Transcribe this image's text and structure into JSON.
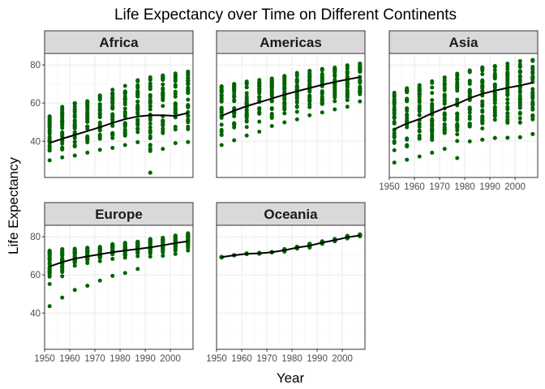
{
  "chart_data": {
    "type": "scatter",
    "title": "Life Expectancy over Time on Different Continents",
    "xlabel": "Year",
    "ylabel": "Life Expectancy",
    "xlim": [
      1950,
      2009
    ],
    "ylim": [
      21,
      86
    ],
    "x_ticks": [
      1950,
      1960,
      1970,
      1980,
      1990,
      2000
    ],
    "y_ticks": [
      40,
      60,
      80
    ],
    "grid": true,
    "point_color": "#006400",
    "trend_color": "#000000",
    "strip_color": "#d9d9d9",
    "years": [
      1952,
      1957,
      1962,
      1967,
      1972,
      1977,
      1982,
      1987,
      1992,
      1997,
      2002,
      2007
    ],
    "panels": [
      {
        "strip": "Africa",
        "points": [
          {
            "year": 1952,
            "min": 30,
            "max": 53
          },
          {
            "year": 1957,
            "min": 31.5,
            "max": 58
          },
          {
            "year": 1962,
            "min": 32.5,
            "max": 60
          },
          {
            "year": 1967,
            "min": 34,
            "max": 61
          },
          {
            "year": 1972,
            "min": 35.5,
            "max": 64
          },
          {
            "year": 1977,
            "min": 36.5,
            "max": 67
          },
          {
            "year": 1982,
            "min": 38,
            "max": 69
          },
          {
            "year": 1987,
            "min": 39.5,
            "max": 72
          },
          {
            "year": 1992,
            "min": 23.5,
            "max": 73.5
          },
          {
            "year": 1997,
            "min": 36,
            "max": 74.5
          },
          {
            "year": 2002,
            "min": 39,
            "max": 75.5
          },
          {
            "year": 2007,
            "min": 39.6,
            "max": 76.5
          }
        ],
        "outliers": [
          {
            "year": 1992,
            "value": 23.5
          }
        ],
        "trend": [
          39.1,
          41.3,
          43.3,
          45.3,
          47.4,
          49.6,
          51.6,
          53.0,
          53.6,
          53.6,
          53.3,
          54.8
        ]
      },
      {
        "strip": "Americas",
        "points": [
          {
            "year": 1952,
            "min": 38,
            "max": 68.8
          },
          {
            "year": 1957,
            "min": 40.5,
            "max": 70
          },
          {
            "year": 1962,
            "min": 43,
            "max": 71.3
          },
          {
            "year": 1967,
            "min": 45,
            "max": 72.1
          },
          {
            "year": 1972,
            "min": 48,
            "max": 72.9
          },
          {
            "year": 1977,
            "min": 49.9,
            "max": 74.2
          },
          {
            "year": 1982,
            "min": 51.5,
            "max": 75.8
          },
          {
            "year": 1987,
            "min": 53.6,
            "max": 76.9
          },
          {
            "year": 1992,
            "min": 55.1,
            "max": 77.9
          },
          {
            "year": 1997,
            "min": 56.7,
            "max": 78.6
          },
          {
            "year": 2002,
            "min": 58.1,
            "max": 79.8
          },
          {
            "year": 2007,
            "min": 60.9,
            "max": 80.7
          }
        ],
        "outliers": [],
        "trend": [
          53.3,
          56.0,
          58.4,
          60.4,
          62.4,
          64.4,
          66.2,
          67.9,
          69.6,
          71.1,
          72.4,
          73.6
        ]
      },
      {
        "strip": "Asia",
        "points": [
          {
            "year": 1952,
            "min": 28.8,
            "max": 65.4
          },
          {
            "year": 1957,
            "min": 30.3,
            "max": 67.8
          },
          {
            "year": 1962,
            "min": 32,
            "max": 69.4
          },
          {
            "year": 1967,
            "min": 34,
            "max": 71.4
          },
          {
            "year": 1972,
            "min": 36,
            "max": 73.4
          },
          {
            "year": 1977,
            "min": 31.2,
            "max": 75.4
          },
          {
            "year": 1982,
            "min": 39.9,
            "max": 77.1
          },
          {
            "year": 1987,
            "min": 40.8,
            "max": 78.7
          },
          {
            "year": 1992,
            "min": 41.7,
            "max": 79.4
          },
          {
            "year": 1997,
            "min": 41.8,
            "max": 80.7
          },
          {
            "year": 2002,
            "min": 42.1,
            "max": 82
          },
          {
            "year": 2007,
            "min": 43.8,
            "max": 82.6
          }
        ],
        "outliers": [
          {
            "year": 1987,
            "value": 40.8
          },
          {
            "year": 1992,
            "value": 41.7
          },
          {
            "year": 1997,
            "value": 41.8
          },
          {
            "year": 2002,
            "value": 42.1
          },
          {
            "year": 2007,
            "value": 43.8
          }
        ],
        "trend": [
          46.3,
          49.3,
          51.6,
          54.7,
          57.3,
          59.6,
          62.6,
          64.9,
          66.5,
          68.0,
          69.2,
          70.7
        ]
      },
      {
        "strip": "Europe",
        "points": [
          {
            "year": 1952,
            "min": 55.2,
            "max": 72.7
          },
          {
            "year": 1957,
            "min": 59.3,
            "max": 73.5
          },
          {
            "year": 1962,
            "min": 64.8,
            "max": 73.7
          },
          {
            "year": 1967,
            "min": 66.2,
            "max": 74.2
          },
          {
            "year": 1972,
            "min": 67.2,
            "max": 74.7
          },
          {
            "year": 1977,
            "min": 68.4,
            "max": 76.1
          },
          {
            "year": 1982,
            "min": 69,
            "max": 76.8
          },
          {
            "year": 1987,
            "min": 69.8,
            "max": 77.4
          },
          {
            "year": 1992,
            "min": 69.6,
            "max": 78.8
          },
          {
            "year": 1997,
            "min": 70,
            "max": 79.4
          },
          {
            "year": 2002,
            "min": 71,
            "max": 80.6
          },
          {
            "year": 2007,
            "min": 72.8,
            "max": 81.8
          }
        ],
        "outliers": [
          {
            "year": 1952,
            "value": 43.6
          },
          {
            "year": 1957,
            "value": 48.1
          },
          {
            "year": 1962,
            "value": 52.1
          },
          {
            "year": 1967,
            "value": 54.3
          },
          {
            "year": 1972,
            "value": 57
          },
          {
            "year": 1977,
            "value": 59.5
          },
          {
            "year": 1982,
            "value": 61
          },
          {
            "year": 1987,
            "value": 63.1
          }
        ],
        "trend": [
          64.4,
          66.7,
          68.5,
          69.7,
          70.8,
          71.9,
          72.8,
          73.6,
          74.4,
          75.5,
          76.7,
          77.6
        ]
      },
      {
        "strip": "Oceania",
        "points": [
          {
            "year": 1952,
            "min": 69.1,
            "max": 69.4
          },
          {
            "year": 1957,
            "min": 70.3,
            "max": 70.3
          },
          {
            "year": 1962,
            "min": 70.9,
            "max": 71.2
          },
          {
            "year": 1967,
            "min": 71.1,
            "max": 71.5
          },
          {
            "year": 1972,
            "min": 71.9,
            "max": 71.9
          },
          {
            "year": 1977,
            "min": 72.2,
            "max": 73.5
          },
          {
            "year": 1982,
            "min": 73.8,
            "max": 74.7
          },
          {
            "year": 1987,
            "min": 74.3,
            "max": 76.3
          },
          {
            "year": 1992,
            "min": 76.3,
            "max": 77.6
          },
          {
            "year": 1997,
            "min": 77.6,
            "max": 78.8
          },
          {
            "year": 2002,
            "min": 79.1,
            "max": 80.4
          },
          {
            "year": 2007,
            "min": 80.2,
            "max": 81.2
          }
        ],
        "outliers": [],
        "trend": [
          69.3,
          70.3,
          71.1,
          71.3,
          71.9,
          72.9,
          74.3,
          75.3,
          76.9,
          78.2,
          79.7,
          80.7
        ]
      }
    ]
  }
}
